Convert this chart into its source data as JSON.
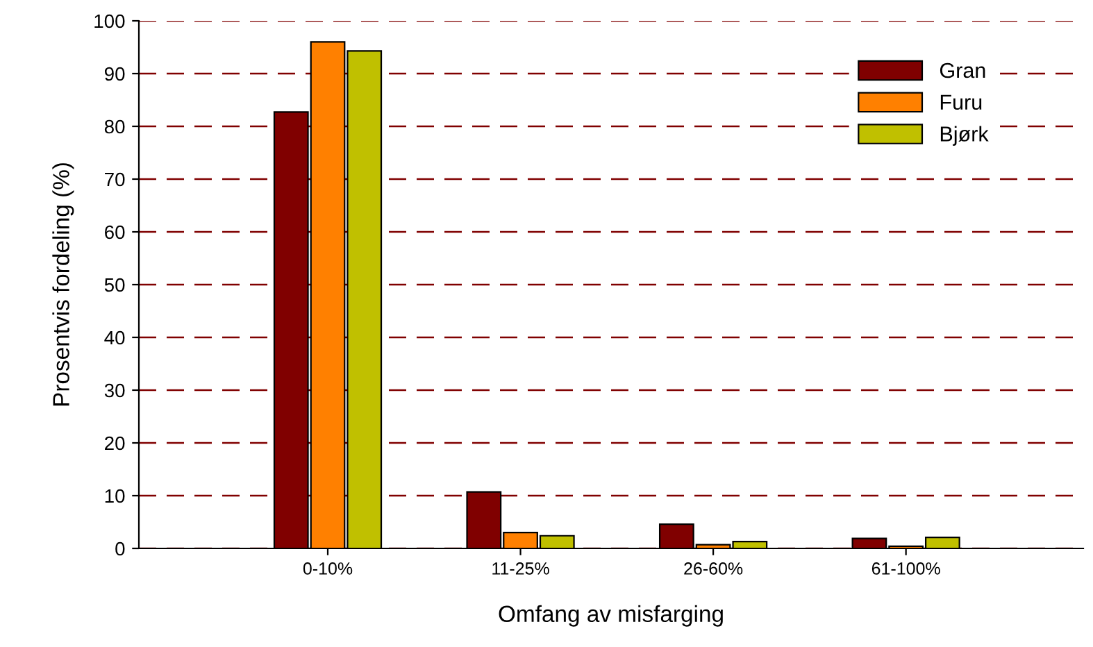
{
  "chart_data": {
    "type": "bar",
    "xlabel": "Omfang av misfarging",
    "ylabel": "Prosentvis fordeling (%)",
    "categories": [
      "0-10%",
      "11-25%",
      "26-60%",
      "61-100%"
    ],
    "series": [
      {
        "name": "Gran",
        "color": "#800000",
        "values": [
          82.7,
          10.7,
          4.6,
          1.9
        ]
      },
      {
        "name": "Furu",
        "color": "#ff8000",
        "values": [
          96,
          3,
          0.7,
          0.4
        ]
      },
      {
        "name": "Bjørk",
        "color": "#c0c000",
        "values": [
          94.3,
          2.4,
          1.3,
          2.1
        ]
      }
    ],
    "ylim": [
      0,
      100
    ],
    "yticks": [
      0,
      10,
      20,
      30,
      40,
      50,
      60,
      70,
      80,
      90,
      100
    ],
    "grid": "y",
    "legend": "top right"
  }
}
